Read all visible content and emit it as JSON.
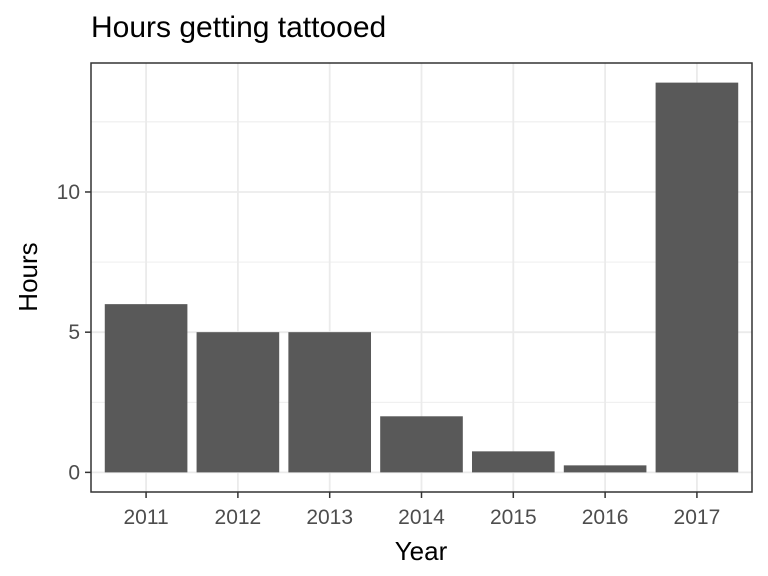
{
  "chart_data": {
    "type": "bar",
    "title": "Hours getting tattooed",
    "xlabel": "Year",
    "ylabel": "Hours",
    "categories": [
      "2011",
      "2012",
      "2013",
      "2014",
      "2015",
      "2016",
      "2017"
    ],
    "values": [
      6,
      5,
      5,
      2,
      0.75,
      0.25,
      13.9
    ],
    "ylim": [
      -0.7,
      14.6
    ],
    "yticks": [
      0,
      5,
      10
    ],
    "ytick_labels": [
      "0",
      "5",
      "10"
    ],
    "grid": true,
    "colors": {
      "bar": "#595959",
      "grid": "#ebebeb",
      "panel_border": "#333333",
      "tick_text": "#4d4d4d"
    }
  }
}
